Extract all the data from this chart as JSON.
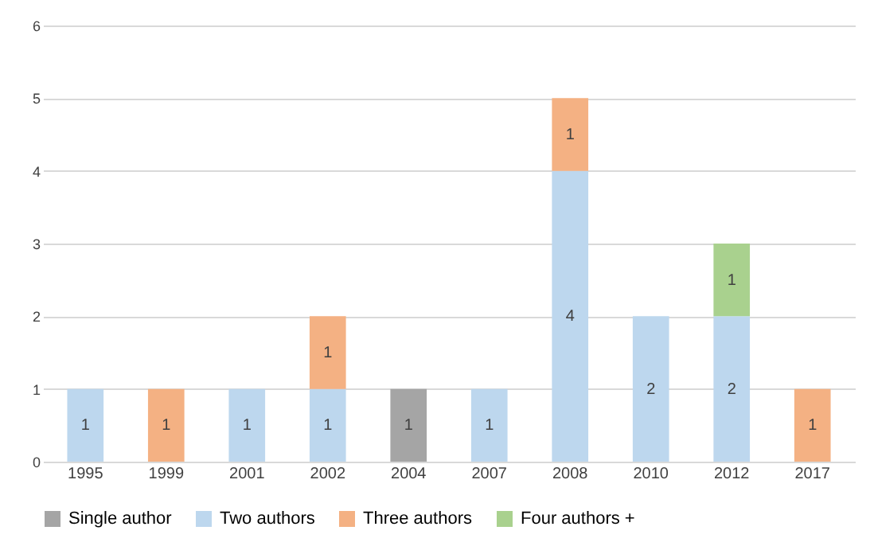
{
  "chart_data": {
    "type": "bar",
    "stacked": true,
    "categories": [
      "1995",
      "1999",
      "2001",
      "2002",
      "2004",
      "2007",
      "2008",
      "2010",
      "2012",
      "2017"
    ],
    "series": [
      {
        "name": "Single author",
        "color": "#a5a5a5",
        "values": [
          null,
          null,
          null,
          null,
          1,
          null,
          null,
          null,
          null,
          null
        ]
      },
      {
        "name": "Two authors",
        "color": "#bdd7ee",
        "values": [
          1,
          null,
          1,
          1,
          null,
          1,
          4,
          2,
          2,
          null
        ]
      },
      {
        "name": "Three authors",
        "color": "#f4b183",
        "values": [
          null,
          1,
          null,
          1,
          null,
          null,
          1,
          null,
          null,
          1
        ]
      },
      {
        "name": "Four authors +",
        "color": "#a9d18e",
        "values": [
          null,
          null,
          null,
          null,
          null,
          null,
          null,
          null,
          1,
          null
        ]
      }
    ],
    "ylim": [
      0,
      6
    ],
    "yticks": [
      0,
      1,
      2,
      3,
      4,
      5,
      6
    ],
    "grid": "y",
    "legend": "bottom",
    "data_labels": true
  }
}
